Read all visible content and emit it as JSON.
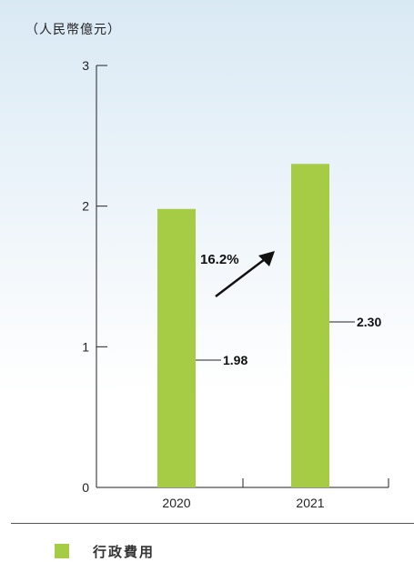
{
  "unit_label": "（人民幣億元）",
  "colors": {
    "bar": "#a6cc45",
    "axis": "#222222",
    "text": "#222222"
  },
  "legend": {
    "label": "行政費用"
  },
  "chart_data": {
    "type": "bar",
    "categories": [
      "2020",
      "2021"
    ],
    "series": [
      {
        "name": "行政費用",
        "values": [
          1.98,
          2.3
        ]
      }
    ],
    "data_labels": [
      "1.98",
      "2.30"
    ],
    "ylim": [
      0,
      3
    ],
    "yticks": [
      "0",
      "1",
      "2",
      "3"
    ],
    "annotation": {
      "text": "16.2%",
      "type": "growth-arrow"
    },
    "grid": false,
    "legend_position": "bottom-left"
  }
}
